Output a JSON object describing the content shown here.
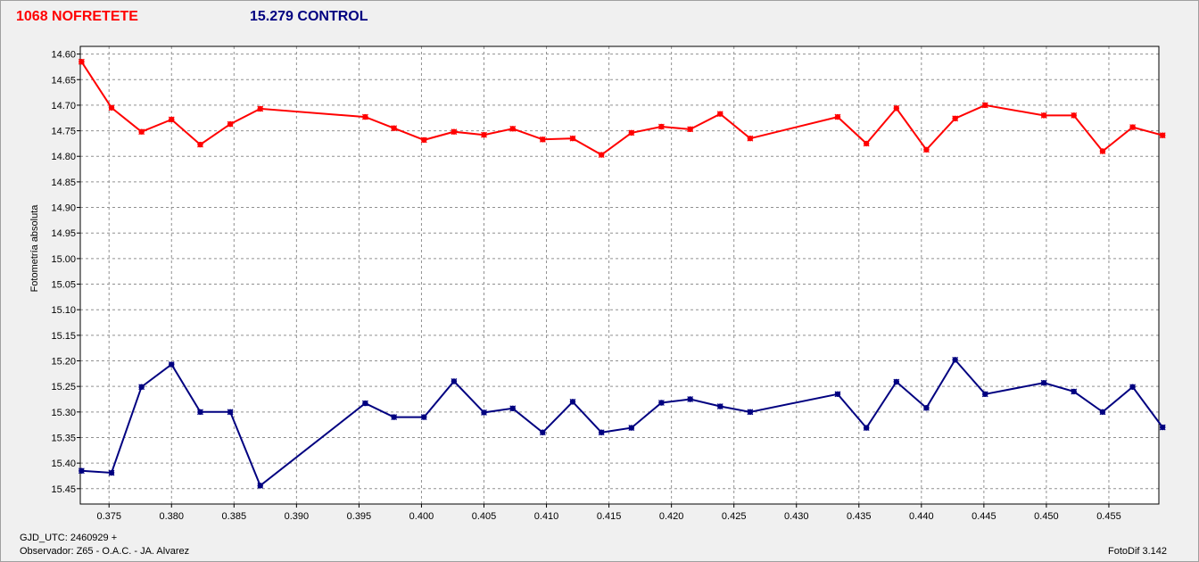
{
  "window": {
    "title_target": "1068 NOFRETETE",
    "title_control": "15.279 CONTROL",
    "footer_gjd": "GJD_UTC: 2460929 +",
    "footer_observer": "Observador: Z65 - O.A.C. - JA. Alvarez",
    "footer_version": "FotoDif 3.142"
  },
  "chart_data": {
    "type": "line",
    "title": "",
    "xlabel": "",
    "ylabel": "Fotometría absoluta",
    "xlim": [
      0.3727,
      0.459
    ],
    "ylim": [
      15.48,
      14.585
    ],
    "y_inverted": true,
    "x_ticks": [
      "0.375",
      "0.380",
      "0.385",
      "0.390",
      "0.395",
      "0.400",
      "0.405",
      "0.410",
      "0.415",
      "0.420",
      "0.425",
      "0.430",
      "0.435",
      "0.440",
      "0.445",
      "0.450",
      "0.455"
    ],
    "y_ticks": [
      "14.60",
      "14.65",
      "14.70",
      "14.75",
      "14.80",
      "14.85",
      "14.90",
      "14.95",
      "15.00",
      "15.05",
      "15.10",
      "15.15",
      "15.20",
      "15.25",
      "15.30",
      "15.35",
      "15.40",
      "15.45"
    ],
    "grid": true,
    "series": [
      {
        "name": "1068 NOFRETETE",
        "color": "#ff0000",
        "x": [
          0.3728,
          0.3752,
          0.3776,
          0.38,
          0.3823,
          0.3847,
          0.3871,
          0.3955,
          0.3978,
          0.4002,
          0.4026,
          0.405,
          0.4073,
          0.4097,
          0.4121,
          0.4144,
          0.4168,
          0.4192,
          0.4215,
          0.4239,
          0.4263,
          0.4333,
          0.4356,
          0.438,
          0.4404,
          0.4427,
          0.4451,
          0.4498,
          0.4522,
          0.4545,
          0.4569,
          0.4593
        ],
        "y": [
          14.615,
          14.705,
          14.752,
          14.728,
          14.777,
          14.737,
          14.707,
          14.723,
          14.745,
          14.768,
          14.752,
          14.758,
          14.746,
          14.767,
          14.765,
          14.797,
          14.754,
          14.742,
          14.747,
          14.717,
          14.765,
          14.723,
          14.775,
          14.706,
          14.787,
          14.726,
          14.7,
          14.72,
          14.72,
          14.79,
          14.743,
          14.759
        ]
      },
      {
        "name": "15.279 CONTROL",
        "color": "#000080",
        "x": [
          0.3728,
          0.3752,
          0.3776,
          0.38,
          0.3823,
          0.3847,
          0.3871,
          0.3955,
          0.3978,
          0.4002,
          0.4026,
          0.405,
          0.4073,
          0.4097,
          0.4121,
          0.4144,
          0.4168,
          0.4192,
          0.4215,
          0.4239,
          0.4263,
          0.4333,
          0.4356,
          0.438,
          0.4404,
          0.4427,
          0.4451,
          0.4498,
          0.4522,
          0.4545,
          0.4569,
          0.4593
        ],
        "y": [
          15.415,
          15.419,
          15.251,
          15.207,
          15.3,
          15.3,
          15.444,
          15.283,
          15.31,
          15.31,
          15.24,
          15.301,
          15.293,
          15.34,
          15.28,
          15.34,
          15.331,
          15.282,
          15.275,
          15.289,
          15.3,
          15.265,
          15.331,
          15.241,
          15.292,
          15.198,
          15.265,
          15.243,
          15.26,
          15.3,
          15.251,
          15.33
        ]
      }
    ]
  }
}
